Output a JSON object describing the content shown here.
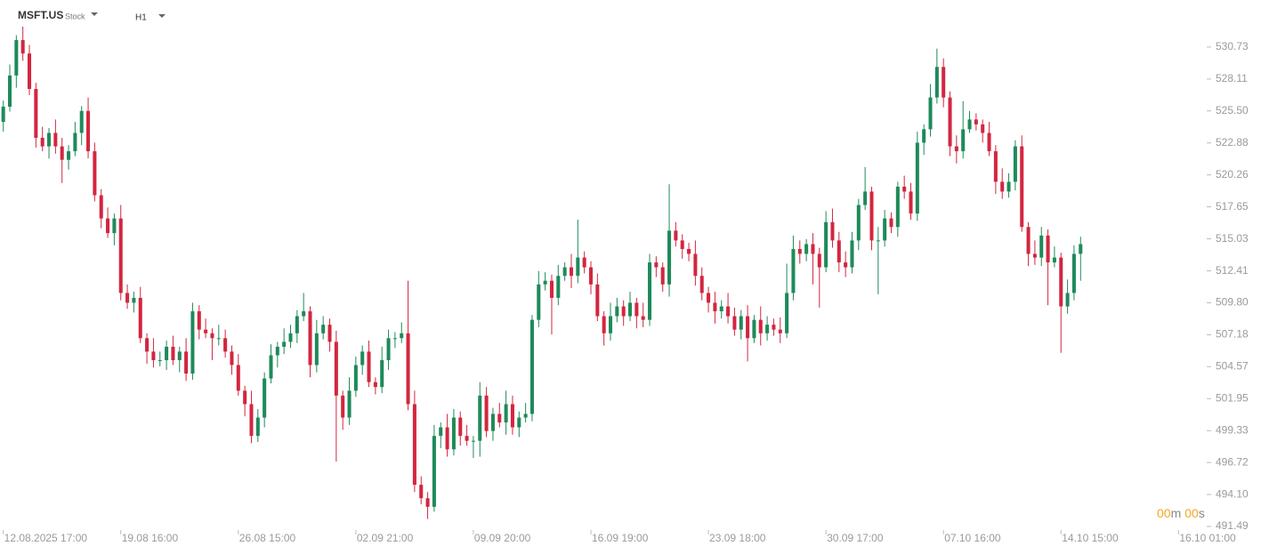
{
  "header": {
    "symbol": "MSFT.US",
    "symbol_type": "Stock",
    "timeframe": "H1"
  },
  "timer": {
    "minutes": "00",
    "minutes_unit": "m",
    "seconds": "00",
    "seconds_unit": "s"
  },
  "chart_data": {
    "type": "candlestick",
    "up_color": "#1e8a5a",
    "down_color": "#d3263f",
    "xlim": [
      -0.5,
      183.5
    ],
    "xticks": [
      {
        "value": 0,
        "label": "12.08.2025 17:00"
      },
      {
        "value": 18,
        "label": "19.08 16:00"
      },
      {
        "value": 36,
        "label": "26.08 15:00"
      },
      {
        "value": 54,
        "label": "02.09 21:00"
      },
      {
        "value": 72,
        "label": "09.09 20:00"
      },
      {
        "value": 90,
        "label": "16.09 19:00"
      },
      {
        "value": 108,
        "label": "23.09 18:00"
      },
      {
        "value": 126,
        "label": "30.09 17:00"
      },
      {
        "value": 144,
        "label": "07.10 16:00"
      },
      {
        "value": 162,
        "label": "14.10 15:00"
      },
      {
        "value": 180,
        "label": "16.10 01:00"
      }
    ],
    "ylim": [
      491.49,
      534.58
    ],
    "yticks": [
      491.49,
      {
        "value": 494.1,
        "label": "494.10"
      },
      496.72,
      499.33,
      501.95,
      504.57,
      507.18,
      {
        "value": 509.8,
        "label": "509.80"
      },
      512.41,
      515.03,
      517.65,
      520.26,
      522.88,
      {
        "value": 525.5,
        "label": "525.50"
      },
      528.11,
      530.73
    ],
    "open": [
      524.6,
      525.85,
      528.4,
      531.3,
      530.2,
      527.3,
      523.3,
      522.6,
      523.7,
      522.6,
      521.5,
      522.2,
      523.7,
      525.5,
      522.2,
      518.6,
      516.7,
      515.5,
      516.7,
      510.6,
      509.8,
      510.2,
      506.9,
      505.8,
      505.1,
      505.1,
      506.2,
      505.1,
      505.8,
      504.0,
      509.1,
      507.6,
      507.3,
      506.9,
      506.9,
      505.8,
      504.7,
      502.6,
      501.5,
      498.9,
      500.4,
      503.6,
      505.5,
      506.2,
      506.6,
      507.3,
      508.7,
      509.1,
      504.7,
      507.3,
      508.0,
      506.6,
      502.2,
      500.4,
      502.6,
      504.7,
      505.8,
      503.3,
      502.9,
      505.1,
      506.9,
      506.9,
      507.3,
      501.5,
      494.9,
      493.8,
      493.1,
      498.9,
      499.6,
      497.8,
      500.4,
      498.9,
      498.5,
      498.5,
      502.2,
      499.3,
      500.7,
      500.0,
      501.5,
      499.6,
      500.4,
      500.7,
      508.4,
      511.3,
      511.6,
      510.2,
      512.0,
      512.7,
      512.0,
      513.5,
      512.7,
      511.3,
      508.7,
      507.3,
      508.7,
      509.5,
      508.7,
      509.8,
      508.7,
      508.4,
      513.1,
      512.7,
      511.3,
      515.7,
      514.9,
      514.2,
      513.8,
      512.0,
      510.6,
      509.8,
      509.1,
      509.5,
      508.7,
      507.6,
      508.7,
      506.9,
      508.4,
      507.3,
      508.0,
      507.6,
      507.3,
      510.6,
      514.2,
      513.8,
      514.6,
      513.8,
      512.7,
      516.4,
      514.9,
      513.1,
      512.7,
      514.9,
      517.8,
      518.9,
      514.9,
      514.9,
      516.7,
      516.0,
      519.3,
      518.9,
      517.1,
      522.9,
      524.0,
      526.6,
      529.1,
      526.6,
      522.6,
      522.2,
      524.0,
      524.8,
      524.4,
      523.7,
      522.2,
      519.7,
      518.9,
      519.7,
      522.6,
      516.0,
      513.8,
      513.5,
      515.3,
      513.1,
      513.5,
      509.5,
      510.6,
      513.8
    ],
    "high": [
      526.35,
      529.3,
      531.7,
      532.4,
      530.9,
      527.8,
      524.2,
      524.1,
      524.8,
      523.3,
      522.7,
      524.6,
      525.9,
      526.6,
      522.9,
      519.1,
      517.6,
      517.1,
      517.8,
      511.3,
      510.7,
      511.1,
      507.3,
      506.9,
      505.8,
      506.7,
      507.1,
      506.2,
      506.9,
      509.8,
      509.6,
      508.5,
      507.7,
      508.0,
      507.6,
      506.3,
      505.6,
      503.0,
      502.6,
      501.1,
      504.1,
      506.4,
      506.6,
      507.7,
      508.0,
      509.2,
      510.6,
      509.5,
      508.4,
      508.7,
      508.5,
      507.5,
      502.6,
      503.7,
      505.4,
      506.3,
      506.7,
      503.7,
      506.2,
      507.6,
      507.4,
      508.2,
      511.6,
      502.6,
      495.6,
      494.3,
      499.8,
      500.0,
      500.7,
      501.1,
      500.9,
      499.8,
      498.9,
      503.3,
      502.9,
      501.2,
      501.6,
      502.6,
      502.2,
      500.9,
      501.6,
      508.8,
      512.4,
      512.3,
      512.1,
      512.9,
      513.1,
      513.8,
      516.6,
      514.0,
      513.2,
      512.2,
      509.1,
      509.8,
      510.2,
      510.0,
      510.7,
      510.2,
      509.8,
      513.8,
      513.6,
      513.1,
      519.5,
      516.4,
      515.4,
      514.7,
      514.9,
      512.7,
      511.1,
      510.7,
      510.0,
      510.6,
      509.4,
      509.2,
      509.6,
      508.8,
      509.5,
      508.7,
      508.5,
      508.6,
      513.0,
      515.3,
      514.9,
      515.0,
      515.5,
      514.3,
      517.3,
      517.5,
      515.6,
      514.0,
      515.6,
      518.3,
      520.9,
      519.3,
      516.0,
      517.4,
      517.2,
      519.7,
      520.2,
      519.6,
      523.8,
      524.4,
      527.7,
      530.6,
      529.8,
      527.1,
      523.5,
      526.3,
      525.5,
      525.3,
      524.8,
      524.6,
      522.7,
      520.8,
      520.4,
      523.1,
      523.5,
      516.4,
      514.9,
      516.0,
      515.8,
      514.4,
      513.9,
      511.7,
      514.5,
      515.2
    ],
    "low": [
      523.8,
      525.45,
      527.4,
      529.6,
      526.8,
      522.5,
      522.2,
      521.6,
      522.0,
      519.6,
      520.7,
      521.8,
      522.7,
      521.6,
      518.1,
      515.9,
      515.1,
      514.5,
      510.0,
      509.3,
      509.0,
      506.5,
      504.8,
      504.5,
      504.6,
      504.3,
      504.7,
      504.1,
      503.4,
      503.5,
      506.8,
      506.9,
      505.1,
      506.3,
      505.3,
      503.9,
      502.2,
      500.5,
      498.3,
      498.4,
      499.6,
      503.2,
      504.5,
      505.6,
      506.1,
      506.5,
      508.3,
      503.7,
      504.1,
      506.8,
      505.8,
      496.8,
      499.4,
      499.8,
      502.1,
      503.9,
      502.9,
      502.3,
      502.4,
      504.3,
      506.1,
      506.5,
      501.0,
      494.3,
      493.3,
      492.1,
      492.7,
      497.9,
      497.2,
      497.3,
      498.1,
      498.1,
      497.1,
      497.2,
      498.8,
      498.5,
      499.6,
      499.0,
      499.0,
      498.8,
      500.0,
      500.1,
      507.8,
      510.8,
      507.2,
      509.6,
      511.6,
      511.0,
      511.4,
      512.2,
      510.5,
      508.3,
      506.3,
      506.7,
      508.2,
      507.9,
      508.3,
      507.7,
      507.8,
      507.9,
      511.9,
      510.7,
      510.3,
      514.4,
      513.4,
      513.2,
      511.2,
      510.0,
      509.0,
      508.1,
      508.5,
      508.1,
      507.1,
      506.8,
      505.0,
      506.5,
      506.3,
      506.7,
      507.1,
      506.5,
      506.9,
      510.0,
      513.0,
      513.2,
      511.3,
      509.4,
      512.3,
      514.3,
      512.3,
      511.9,
      512.2,
      514.1,
      517.4,
      514.1,
      510.5,
      514.4,
      515.5,
      515.2,
      518.3,
      516.6,
      516.5,
      521.9,
      523.4,
      526.1,
      525.8,
      521.8,
      521.2,
      521.6,
      523.7,
      523.9,
      522.9,
      521.8,
      518.7,
      518.3,
      518.4,
      519.0,
      515.6,
      512.8,
      512.9,
      512.8,
      509.6,
      512.7,
      505.7,
      508.9,
      510.0,
      511.6
    ],
    "close": [
      525.85,
      528.4,
      531.3,
      530.2,
      527.3,
      523.3,
      522.6,
      523.7,
      522.6,
      521.5,
      522.2,
      523.7,
      525.5,
      522.2,
      518.6,
      516.7,
      515.5,
      516.7,
      510.6,
      509.8,
      510.2,
      506.9,
      505.8,
      505.1,
      505.1,
      506.2,
      505.1,
      505.8,
      504.0,
      509.1,
      507.6,
      507.3,
      506.9,
      506.9,
      505.8,
      504.7,
      502.6,
      501.5,
      498.9,
      500.4,
      503.6,
      505.5,
      506.2,
      506.6,
      507.3,
      508.7,
      509.1,
      504.7,
      507.3,
      508.0,
      506.6,
      502.2,
      500.4,
      502.6,
      504.7,
      505.8,
      503.3,
      502.9,
      505.1,
      506.9,
      506.9,
      507.3,
      501.5,
      494.9,
      493.8,
      493.1,
      498.9,
      499.6,
      497.8,
      500.4,
      498.9,
      498.5,
      498.5,
      502.2,
      499.3,
      500.7,
      500.0,
      501.5,
      499.6,
      500.4,
      500.7,
      508.4,
      511.3,
      511.6,
      510.2,
      512.0,
      512.7,
      512.0,
      513.5,
      512.7,
      511.3,
      508.7,
      507.3,
      508.7,
      509.5,
      508.7,
      509.8,
      508.7,
      508.4,
      513.1,
      512.7,
      511.3,
      515.7,
      514.9,
      514.2,
      513.8,
      512.0,
      510.6,
      509.8,
      509.1,
      509.5,
      508.7,
      507.6,
      508.7,
      506.9,
      508.4,
      507.3,
      508.0,
      507.6,
      507.3,
      510.6,
      514.2,
      513.8,
      514.6,
      513.8,
      512.7,
      516.4,
      514.9,
      513.1,
      512.7,
      514.9,
      517.8,
      518.9,
      514.9,
      514.9,
      516.7,
      516.0,
      519.3,
      518.9,
      517.1,
      522.9,
      524.0,
      526.6,
      529.1,
      526.6,
      522.6,
      522.2,
      524.0,
      524.8,
      524.4,
      523.7,
      522.2,
      519.7,
      518.9,
      519.7,
      522.6,
      516.0,
      513.8,
      513.5,
      515.3,
      513.1,
      513.5,
      509.5,
      510.6,
      513.8,
      514.6
    ]
  }
}
